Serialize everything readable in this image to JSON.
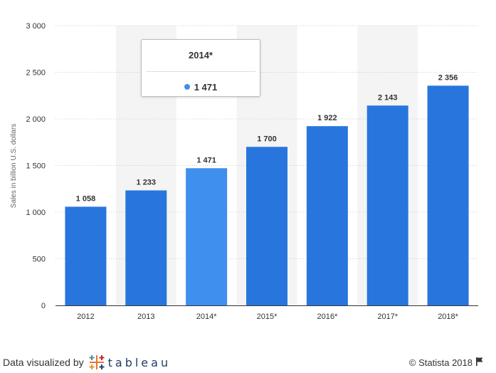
{
  "chart_data": {
    "type": "bar",
    "categories": [
      "2012",
      "2013",
      "2014*",
      "2015*",
      "2016*",
      "2017*",
      "2018*"
    ],
    "values": [
      1058,
      1233,
      1471,
      1700,
      1922,
      2143,
      2356
    ],
    "value_labels": [
      "1 058",
      "1 233",
      "1 471",
      "1 700",
      "1 922",
      "2 143",
      "2 356"
    ],
    "title": "",
    "xlabel": "",
    "ylabel": "Sales in billion U.S. dollars",
    "ylim": [
      0,
      3000
    ],
    "yticks": [
      0,
      500,
      1000,
      1500,
      2000,
      2500,
      3000
    ],
    "ytick_labels": [
      "0",
      "500",
      "1 000",
      "1 500",
      "2 000",
      "2 500",
      "3 000"
    ],
    "grid": true,
    "highlighted_index": 2,
    "colors": {
      "bar": "#2876dd",
      "highlight": "#3f8fee",
      "band": "#f4f4f4",
      "grid": "#cccccc"
    }
  },
  "tooltip": {
    "title": "2014*",
    "value": "1 471",
    "dot_color": "#3f8fee"
  },
  "footer": {
    "left_text": "Data visualized by",
    "brand": "tableau",
    "right_text": "© Statista 2018"
  }
}
